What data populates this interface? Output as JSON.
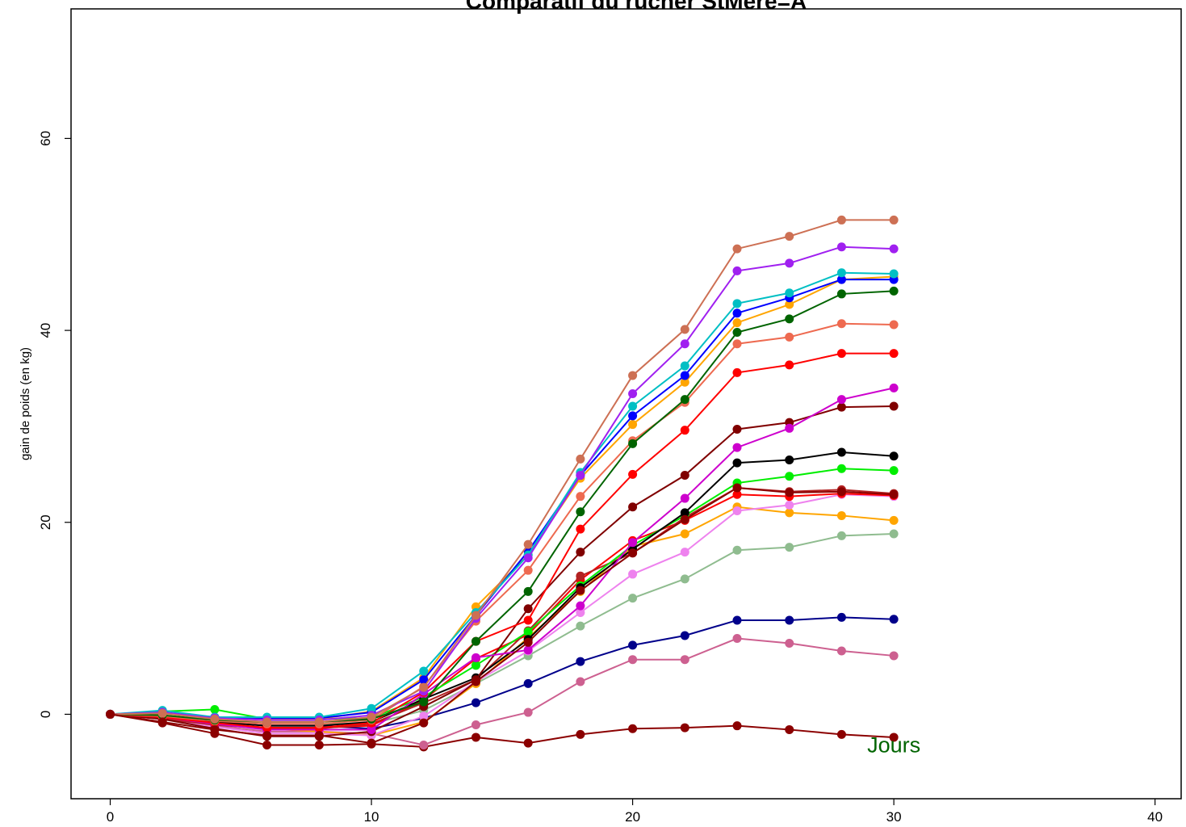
{
  "chart_data": {
    "type": "line",
    "title": "Comparatif du rucher StMere=A",
    "xlabel": "",
    "ylabel": "gain de poids (en kg)",
    "xlim": [
      -1.5,
      41
    ],
    "ylim": [
      -8.8,
      73.5
    ],
    "x_ticks": [
      0,
      10,
      20,
      30,
      40
    ],
    "y_ticks": [
      0,
      20,
      40,
      60
    ],
    "grid": false,
    "legend": "none",
    "annotation": {
      "text": "Jours",
      "x": 30,
      "y": -3.2,
      "color": "#006400"
    },
    "x": [
      0,
      2,
      4,
      6,
      8,
      10,
      12,
      14,
      16,
      18,
      20,
      22,
      24,
      26,
      28,
      30
    ],
    "series": [
      {
        "color": "#8B0000",
        "values": [
          0,
          -0.9,
          -2.0,
          -3.2,
          -3.2,
          -3.1,
          -3.4,
          -2.4,
          -3.0,
          -2.1,
          -1.5,
          -1.4,
          -1.2,
          -1.6,
          -2.1,
          -2.4
        ]
      },
      {
        "color": "#CD6090",
        "values": [
          0,
          -0.4,
          -1.2,
          -1.8,
          -1.8,
          -2.0,
          -3.2,
          -1.1,
          0.2,
          3.4,
          5.7,
          5.7,
          7.9,
          7.4,
          6.6,
          6.1
        ]
      },
      {
        "color": "#00008B",
        "values": [
          0,
          -0.3,
          -0.8,
          -1.2,
          -1.2,
          -1.5,
          -0.4,
          1.2,
          3.2,
          5.5,
          7.2,
          8.2,
          9.8,
          9.8,
          10.1,
          9.9
        ]
      },
      {
        "color": "#8FBC8F",
        "values": [
          0,
          -0.2,
          -0.6,
          -1.0,
          -1.0,
          -1.0,
          0.4,
          3.2,
          6.1,
          9.2,
          12.1,
          14.1,
          17.1,
          17.4,
          18.6,
          18.8
        ]
      },
      {
        "color": "#FFA500",
        "values": [
          0,
          -0.3,
          -1.0,
          -1.5,
          -1.8,
          -2.2,
          -0.8,
          3.2,
          8.0,
          12.8,
          17.5,
          18.8,
          21.6,
          21.0,
          20.7,
          20.2
        ]
      },
      {
        "color": "#EE82EE",
        "values": [
          0,
          -0.5,
          -1.3,
          -2.0,
          -2.0,
          -2.2,
          -0.2,
          3.4,
          6.6,
          10.6,
          14.6,
          16.9,
          21.2,
          21.8,
          22.9,
          22.7
        ]
      },
      {
        "color": "#FF0000",
        "values": [
          0,
          -0.4,
          -1.0,
          -1.4,
          -1.4,
          -1.2,
          1.5,
          5.8,
          8.3,
          14.0,
          18.1,
          20.2,
          22.9,
          22.7,
          23.0,
          22.8
        ]
      },
      {
        "color": "#B22222",
        "values": [
          0,
          -0.5,
          -1.1,
          -1.5,
          -1.5,
          -1.0,
          1.2,
          3.6,
          8.7,
          14.4,
          16.8,
          20.5,
          23.6,
          23.2,
          23.4,
          23.0
        ]
      },
      {
        "color": "#00EE00",
        "values": [
          0,
          0.3,
          0.5,
          -0.5,
          -0.5,
          -0.4,
          1.8,
          5.1,
          8.6,
          13.4,
          17.6,
          20.7,
          24.1,
          24.8,
          25.6,
          25.4
        ]
      },
      {
        "color": "#000000",
        "values": [
          0,
          -0.2,
          -0.8,
          -1.2,
          -1.2,
          -0.8,
          1.6,
          3.8,
          7.8,
          13.2,
          17.2,
          21.0,
          26.2,
          26.5,
          27.3,
          26.9
        ]
      },
      {
        "color": "#800000",
        "values": [
          0,
          -0.5,
          -1.5,
          -2.3,
          -2.3,
          -1.8,
          0.8,
          3.6,
          11.0,
          16.9,
          21.6,
          24.9,
          29.7,
          30.4,
          32.0,
          32.1
        ]
      },
      {
        "color": "#CD00CD",
        "values": [
          0,
          -0.3,
          -1.0,
          -1.6,
          -1.6,
          -1.6,
          2.1,
          5.9,
          6.7,
          11.3,
          17.9,
          22.5,
          27.8,
          29.8,
          32.8,
          34.0
        ]
      },
      {
        "color": "#FF0000",
        "values": [
          0,
          -0.3,
          -0.9,
          -1.4,
          -1.4,
          -0.9,
          2.3,
          7.6,
          9.8,
          19.3,
          25.0,
          29.6,
          35.6,
          36.4,
          37.6,
          37.6
        ]
      },
      {
        "color": "#EE6A50",
        "values": [
          0,
          -0.2,
          -0.7,
          -1.0,
          -1.0,
          -0.6,
          2.9,
          9.7,
          15.0,
          22.7,
          28.5,
          32.5,
          38.6,
          39.3,
          40.7,
          40.6
        ]
      },
      {
        "color": "#006400",
        "values": [
          0,
          -0.1,
          -0.6,
          -0.8,
          -0.8,
          -0.5,
          1.3,
          7.6,
          12.8,
          21.1,
          28.2,
          32.8,
          39.8,
          41.2,
          43.8,
          44.1
        ]
      },
      {
        "color": "#FFA500",
        "values": [
          0,
          0.1,
          -0.3,
          -0.5,
          -0.5,
          0.3,
          3.8,
          11.2,
          16.6,
          24.6,
          30.2,
          34.6,
          40.8,
          42.7,
          45.3,
          45.6
        ]
      },
      {
        "color": "#0000FF",
        "values": [
          0,
          0.2,
          -0.3,
          -0.4,
          -0.4,
          0.2,
          3.6,
          10.3,
          17.0,
          24.9,
          31.1,
          35.3,
          41.8,
          43.4,
          45.3,
          45.3
        ]
      },
      {
        "color": "#00BFC4",
        "values": [
          0,
          0.4,
          -0.3,
          -0.3,
          -0.3,
          0.6,
          4.5,
          10.6,
          16.6,
          25.2,
          32.1,
          36.3,
          42.8,
          43.9,
          46.0,
          45.9
        ]
      },
      {
        "color": "#A020F0",
        "values": [
          0,
          0.2,
          -0.4,
          -0.6,
          -0.6,
          -0.1,
          2.4,
          10.0,
          16.3,
          24.9,
          33.4,
          38.6,
          46.2,
          47.0,
          48.7,
          48.5
        ]
      },
      {
        "color": "#CD7054",
        "values": [
          0,
          0.1,
          -0.5,
          -0.8,
          -0.8,
          -0.3,
          2.8,
          10.3,
          17.7,
          26.6,
          35.3,
          40.1,
          48.5,
          49.8,
          51.5,
          51.5
        ]
      },
      {
        "color": "#8B0000",
        "values": [
          0,
          -0.8,
          -1.6,
          -2.2,
          -2.2,
          -3.0,
          -0.9,
          3.4,
          7.5,
          12.9,
          16.8,
          20.3,
          23.6,
          23.1,
          23.2,
          22.9
        ]
      }
    ]
  }
}
